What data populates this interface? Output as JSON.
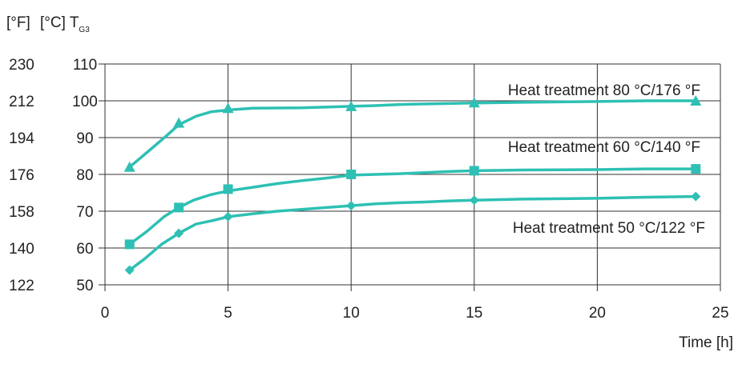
{
  "axis_units": {
    "left_outer": "[°F]",
    "left_inner": "[°C] T",
    "left_inner_sub": "G3"
  },
  "chart_data": {
    "type": "line",
    "xlabel": "Time [h]",
    "ylabel": "[°C] T_G3",
    "y2label": "[°F]",
    "xlim": [
      0,
      25
    ],
    "ylim": [
      50,
      110
    ],
    "xticks": [
      0,
      5,
      10,
      15,
      20,
      25
    ],
    "yticks": [
      50,
      60,
      70,
      80,
      90,
      100,
      110
    ],
    "yticks_f": [
      122,
      140,
      158,
      176,
      194,
      212,
      230
    ],
    "grid": true,
    "series_color": "#2ec0b4",
    "series": [
      {
        "name": "Heat treatment 80 °C/176 °F",
        "marker": "triangle",
        "points": [
          [
            1,
            82
          ],
          [
            3,
            94
          ],
          [
            5,
            98
          ],
          [
            10,
            98.5
          ],
          [
            15,
            99.5
          ],
          [
            24,
            100
          ]
        ],
        "curve": [
          [
            1,
            82
          ],
          [
            1.8,
            86.5
          ],
          [
            2.5,
            90.5
          ],
          [
            3,
            93.5
          ],
          [
            3.7,
            95.8
          ],
          [
            4.3,
            97
          ],
          [
            5,
            97.5
          ],
          [
            6,
            98
          ],
          [
            8,
            98.1
          ],
          [
            10,
            98.5
          ],
          [
            11,
            98.7
          ],
          [
            12,
            99
          ],
          [
            13.5,
            99.2
          ],
          [
            15,
            99.4
          ],
          [
            17,
            99.6
          ],
          [
            20,
            99.8
          ],
          [
            22,
            100
          ],
          [
            24,
            100
          ]
        ]
      },
      {
        "name": "Heat treatment 60 °C/140 °F",
        "marker": "square",
        "points": [
          [
            1,
            61
          ],
          [
            3,
            71
          ],
          [
            5,
            76
          ],
          [
            10,
            80
          ],
          [
            15,
            81
          ],
          [
            24,
            81.5
          ]
        ],
        "curve": [
          [
            1,
            61
          ],
          [
            1.7,
            64.5
          ],
          [
            2.4,
            68.5
          ],
          [
            3,
            71
          ],
          [
            3.6,
            73
          ],
          [
            4.3,
            74.5
          ],
          [
            5,
            75.5
          ],
          [
            6,
            76.5
          ],
          [
            7,
            77.5
          ],
          [
            8,
            78.3
          ],
          [
            9,
            79
          ],
          [
            10,
            79.8
          ],
          [
            11,
            80
          ],
          [
            12,
            80.2
          ],
          [
            13,
            80.5
          ],
          [
            14,
            80.8
          ],
          [
            15,
            81
          ],
          [
            17,
            81.2
          ],
          [
            20,
            81.3
          ],
          [
            22,
            81.5
          ],
          [
            24,
            81.5
          ]
        ]
      },
      {
        "name": "Heat treatment 50 °C/122 °F",
        "marker": "diamond",
        "points": [
          [
            1,
            54
          ],
          [
            3,
            64
          ],
          [
            5,
            68.5
          ],
          [
            10,
            71.5
          ],
          [
            15,
            73
          ],
          [
            24,
            74
          ]
        ],
        "curve": [
          [
            1,
            54
          ],
          [
            1.6,
            57
          ],
          [
            2.3,
            61
          ],
          [
            3,
            64
          ],
          [
            3.7,
            66.5
          ],
          [
            4.4,
            67.5
          ],
          [
            5,
            68.5
          ],
          [
            6,
            69.3
          ],
          [
            7,
            70
          ],
          [
            8,
            70.5
          ],
          [
            9,
            71
          ],
          [
            10,
            71.5
          ],
          [
            11,
            72
          ],
          [
            12,
            72.3
          ],
          [
            13,
            72.5
          ],
          [
            14,
            72.8
          ],
          [
            15,
            73
          ],
          [
            17,
            73.3
          ],
          [
            20,
            73.5
          ],
          [
            22,
            73.8
          ],
          [
            24,
            74
          ]
        ]
      }
    ]
  }
}
